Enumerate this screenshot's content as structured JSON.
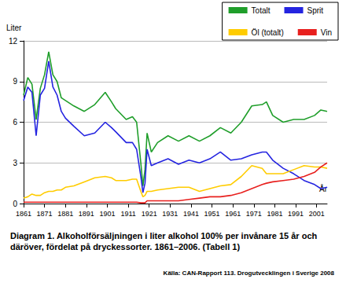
{
  "chart_data": {
    "type": "line",
    "title": "Diagram 1. Alkoholförsäljningen i liter alkohol 100% per invånare 15 år och däröver, fördelat på dryckessorter. 1861–2006. (Tabell 1)",
    "source": "Källa: CAN-Rapport 113. Drogutvecklingen i Sverige 2008",
    "ylabel": "Liter",
    "xlabel": "År",
    "x": [
      1861,
      1863,
      1865,
      1867,
      1869,
      1871,
      1873,
      1875,
      1877,
      1879,
      1881,
      1885,
      1890,
      1895,
      1900,
      1903,
      1905,
      1910,
      1913,
      1915,
      1917,
      1918,
      1919,
      1920,
      1922,
      1925,
      1930,
      1935,
      1940,
      1945,
      1950,
      1955,
      1960,
      1965,
      1970,
      1975,
      1977,
      1980,
      1985,
      1990,
      1995,
      2000,
      2003,
      2006
    ],
    "series": [
      {
        "name": "Totalt",
        "color": "#1f9e2a",
        "values": [
          8.0,
          9.3,
          8.8,
          6.2,
          8.5,
          9.5,
          11.2,
          9.5,
          9.0,
          7.8,
          7.6,
          7.2,
          6.8,
          7.3,
          8.2,
          7.5,
          7.0,
          6.2,
          6.4,
          6.0,
          3.0,
          1.3,
          2.5,
          5.2,
          3.8,
          4.5,
          5.0,
          4.6,
          5.0,
          4.6,
          5.0,
          5.6,
          5.2,
          6.0,
          7.2,
          7.3,
          7.5,
          6.5,
          6.0,
          6.2,
          6.2,
          6.5,
          6.9,
          6.8
        ]
      },
      {
        "name": "Sprit",
        "color": "#2424e0",
        "values": [
          7.6,
          8.6,
          8.2,
          5.0,
          8.0,
          8.5,
          10.5,
          8.6,
          8.0,
          6.8,
          6.3,
          5.7,
          5.0,
          5.2,
          6.0,
          5.6,
          5.3,
          4.5,
          4.5,
          4.0,
          2.0,
          0.8,
          1.5,
          4.0,
          2.8,
          3.0,
          3.3,
          2.9,
          3.2,
          3.0,
          3.3,
          3.8,
          3.2,
          3.3,
          3.6,
          3.8,
          3.8,
          3.2,
          2.6,
          2.2,
          1.7,
          1.4,
          1.1,
          1.2
        ]
      },
      {
        "name": "Öl (totalt)",
        "color": "#ffcc00",
        "values": [
          0.4,
          0.5,
          0.7,
          0.6,
          0.6,
          0.8,
          0.9,
          0.9,
          1.0,
          1.0,
          1.2,
          1.3,
          1.6,
          1.9,
          2.0,
          1.9,
          1.7,
          1.7,
          1.8,
          1.8,
          0.9,
          0.5,
          0.6,
          0.9,
          0.9,
          1.0,
          1.1,
          1.2,
          1.2,
          0.9,
          1.1,
          1.3,
          1.4,
          2.0,
          2.8,
          2.6,
          2.2,
          2.2,
          2.2,
          2.5,
          2.8,
          2.7,
          2.7,
          2.6
        ]
      },
      {
        "name": "Vin",
        "color": "#e8201e",
        "values": [
          0.1,
          0.1,
          0.1,
          0.1,
          0.1,
          0.1,
          0.1,
          0.1,
          0.1,
          0.1,
          0.1,
          0.1,
          0.1,
          0.1,
          0.1,
          0.1,
          0.1,
          0.1,
          0.1,
          0.1,
          0.05,
          0.05,
          0.05,
          0.2,
          0.2,
          0.2,
          0.2,
          0.2,
          0.3,
          0.4,
          0.5,
          0.5,
          0.6,
          0.8,
          1.1,
          1.4,
          1.5,
          1.6,
          1.7,
          1.8,
          2.0,
          2.3,
          2.7,
          3.0
        ]
      }
    ],
    "xlim": [
      1861,
      2006
    ],
    "xticks": [
      1861,
      1871,
      1881,
      1891,
      1901,
      1911,
      1921,
      1931,
      1941,
      1951,
      1961,
      1971,
      1981,
      1991,
      2001
    ],
    "ylim": [
      0,
      12
    ],
    "yticks": [
      0,
      3,
      6,
      9,
      12
    ],
    "grid": true,
    "legend": "top-right",
    "marker": "none"
  }
}
